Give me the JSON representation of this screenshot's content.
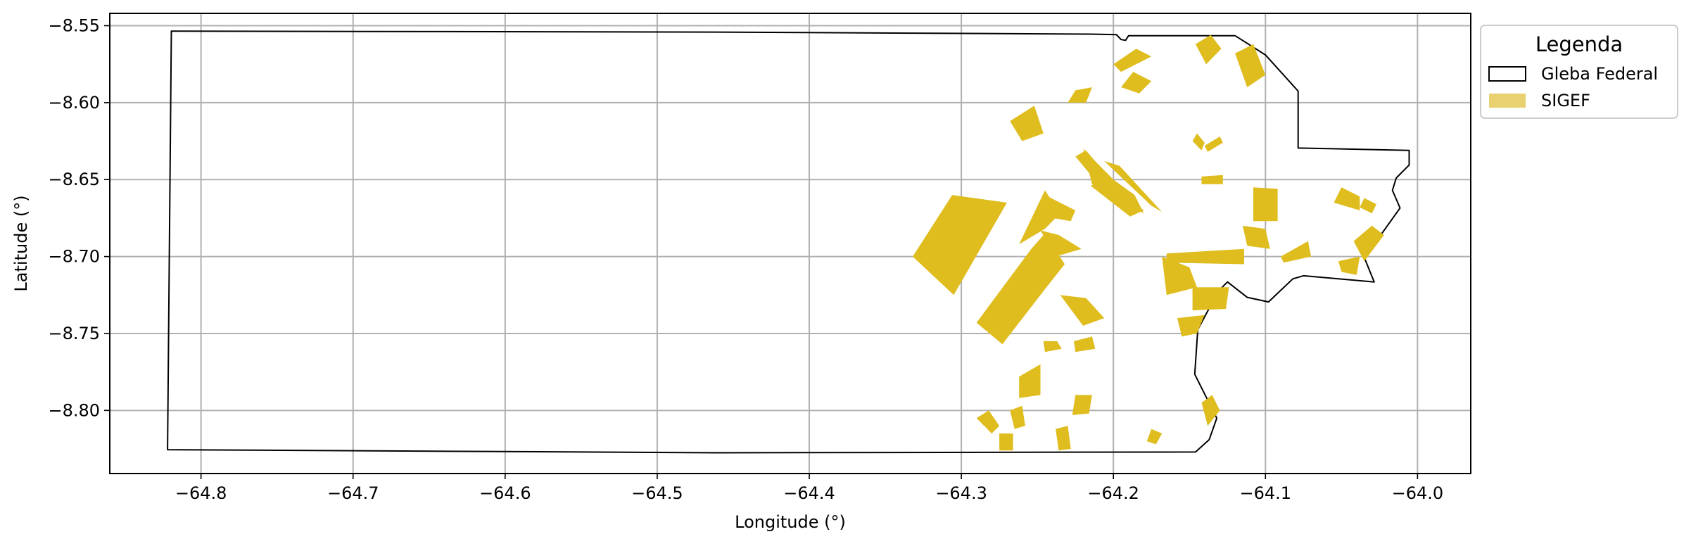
{
  "chart_data": {
    "type": "map",
    "xlabel": "Longitude (°)",
    "ylabel": "Latitude (°)",
    "xlim": [
      -64.86,
      -63.965
    ],
    "ylim": [
      -8.841,
      -8.542
    ],
    "grid": true,
    "xticks": [
      -64.8,
      -64.7,
      -64.6,
      -64.5,
      -64.4,
      -64.3,
      -64.2,
      -64.1,
      -64.0
    ],
    "yticks": [
      -8.55,
      -8.6,
      -8.65,
      -8.7,
      -8.75,
      -8.8
    ],
    "xtick_labels": [
      "−64.8",
      "−64.7",
      "−64.6",
      "−64.5",
      "−64.4",
      "−64.3",
      "−64.2",
      "−64.1",
      "−64.0"
    ],
    "ytick_labels": [
      "−8.55",
      "−8.60",
      "−8.65",
      "−8.70",
      "−8.75",
      "−8.80"
    ],
    "legend": {
      "title": "Legenda",
      "position": "outside-right-top",
      "entries": [
        {
          "label": "Gleba Federal",
          "style": "outline",
          "color": "#000000"
        },
        {
          "label": "SIGEF",
          "style": "fill",
          "color": "#dfbd1f"
        }
      ]
    },
    "layers": {
      "gleba_federal": {
        "name": "Gleba Federal",
        "edge_color": "#000000",
        "polygon": [
          [
            -64.8195,
            -8.5535
          ],
          [
            -64.45,
            -8.5542
          ],
          [
            -64.215,
            -8.5555
          ],
          [
            -64.198,
            -8.5558
          ],
          [
            -64.195,
            -8.559
          ],
          [
            -64.192,
            -8.5595
          ],
          [
            -64.19,
            -8.5565
          ],
          [
            -64.12,
            -8.5565
          ],
          [
            -64.1,
            -8.569
          ],
          [
            -64.0785,
            -8.5925
          ],
          [
            -64.0785,
            -8.6295
          ],
          [
            -64.0055,
            -8.631
          ],
          [
            -64.0055,
            -8.6405
          ],
          [
            -64.014,
            -8.649
          ],
          [
            -64.0165,
            -8.657
          ],
          [
            -64.013,
            -8.665
          ],
          [
            -64.0115,
            -8.6685
          ],
          [
            -64.0245,
            -8.6865
          ],
          [
            -64.0375,
            -8.6945
          ],
          [
            -64.0285,
            -8.7165
          ],
          [
            -64.075,
            -8.7125
          ],
          [
            -64.082,
            -8.7145
          ],
          [
            -64.098,
            -8.7295
          ],
          [
            -64.112,
            -8.7265
          ],
          [
            -64.125,
            -8.7165
          ],
          [
            -64.131,
            -8.7225
          ],
          [
            -64.1445,
            -8.7475
          ],
          [
            -64.1465,
            -8.7765
          ],
          [
            -64.132,
            -8.805
          ],
          [
            -64.137,
            -8.819
          ],
          [
            -64.146,
            -8.827
          ],
          [
            -64.46,
            -8.8275
          ],
          [
            -64.822,
            -8.8255
          ],
          [
            -64.8195,
            -8.5535
          ]
        ]
      },
      "sigef": {
        "name": "SIGEF",
        "fill_color": "#dfbd1f",
        "parcels": [
          [
            [
              -64.332,
              -8.7
            ],
            [
              -64.306,
              -8.66
            ],
            [
              -64.27,
              -8.665
            ],
            [
              -64.305,
              -8.725
            ]
          ],
          [
            [
              -64.29,
              -8.743
            ],
            [
              -64.254,
              -8.695
            ],
            [
              -64.245,
              -8.685
            ],
            [
              -64.232,
              -8.705
            ],
            [
              -64.244,
              -8.72
            ],
            [
              -64.273,
              -8.757
            ]
          ],
          [
            [
              -64.262,
              -8.692
            ],
            [
              -64.245,
              -8.657
            ],
            [
              -64.235,
              -8.672
            ],
            [
              -64.245,
              -8.682
            ]
          ],
          [
            [
              -64.248,
              -8.683
            ],
            [
              -64.236,
              -8.686
            ],
            [
              -64.221,
              -8.695
            ],
            [
              -64.238,
              -8.7
            ]
          ],
          [
            [
              -64.24,
              -8.675
            ],
            [
              -64.245,
              -8.66
            ],
            [
              -64.225,
              -8.67
            ],
            [
              -64.228,
              -8.677
            ]
          ],
          [
            [
              -64.18,
              -8.672
            ],
            [
              -64.214,
              -8.653
            ],
            [
              -64.22,
              -8.63
            ],
            [
              -64.2,
              -8.65
            ],
            [
              -64.186,
              -8.66
            ]
          ],
          [
            [
              -64.206,
              -8.638
            ],
            [
              -64.175,
              -8.667
            ],
            [
              -64.168,
              -8.671
            ],
            [
              -64.196,
              -8.641
            ]
          ],
          [
            [
              -64.225,
              -8.635
            ],
            [
              -64.204,
              -8.66
            ],
            [
              -64.196,
              -8.657
            ],
            [
              -64.218,
              -8.631
            ]
          ],
          [
            [
              -64.215,
              -8.654
            ],
            [
              -64.189,
              -8.674
            ],
            [
              -64.18,
              -8.67
            ],
            [
              -64.205,
              -8.65
            ]
          ],
          [
            [
              -64.252,
              -8.602
            ],
            [
              -64.268,
              -8.612
            ],
            [
              -64.26,
              -8.625
            ],
            [
              -64.246,
              -8.62
            ]
          ],
          [
            [
              -64.225,
              -8.592
            ],
            [
              -64.214,
              -8.59
            ],
            [
              -64.218,
              -8.6
            ],
            [
              -64.23,
              -8.6
            ]
          ],
          [
            [
              -64.2,
              -8.575
            ],
            [
              -64.185,
              -8.565
            ],
            [
              -64.175,
              -8.57
            ],
            [
              -64.195,
              -8.58
            ]
          ],
          [
            [
              -64.195,
              -8.59
            ],
            [
              -64.183,
              -8.594
            ],
            [
              -64.175,
              -8.586
            ],
            [
              -64.187,
              -8.58
            ]
          ],
          [
            [
              -64.146,
              -8.562
            ],
            [
              -64.136,
              -8.556
            ],
            [
              -64.129,
              -8.565
            ],
            [
              -64.139,
              -8.575
            ]
          ],
          [
            [
              -64.12,
              -8.568
            ],
            [
              -64.108,
              -8.562
            ],
            [
              -64.1,
              -8.582
            ],
            [
              -64.112,
              -8.59
            ]
          ],
          [
            [
              -64.148,
              -8.625
            ],
            [
              -64.142,
              -8.631
            ],
            [
              -64.14,
              -8.626
            ],
            [
              -64.145,
              -8.62
            ]
          ],
          [
            [
              -64.14,
              -8.628
            ],
            [
              -64.13,
              -8.622
            ],
            [
              -64.128,
              -8.626
            ],
            [
              -64.138,
              -8.632
            ]
          ],
          [
            [
              -64.142,
              -8.648
            ],
            [
              -64.128,
              -8.647
            ],
            [
              -64.128,
              -8.653
            ],
            [
              -64.142,
              -8.653
            ]
          ],
          [
            [
              -64.108,
              -8.655
            ],
            [
              -64.092,
              -8.656
            ],
            [
              -64.092,
              -8.677
            ],
            [
              -64.108,
              -8.677
            ]
          ],
          [
            [
              -64.05,
              -8.655
            ],
            [
              -64.038,
              -8.661
            ],
            [
              -64.038,
              -8.67
            ],
            [
              -64.055,
              -8.665
            ]
          ],
          [
            [
              -64.035,
              -8.662
            ],
            [
              -64.027,
              -8.666
            ],
            [
              -64.03,
              -8.672
            ],
            [
              -64.038,
              -8.668
            ]
          ],
          [
            [
              -64.115,
              -8.68
            ],
            [
              -64.1,
              -8.682
            ],
            [
              -64.097,
              -8.695
            ],
            [
              -64.112,
              -8.693
            ]
          ],
          [
            [
              -64.165,
              -8.698
            ],
            [
              -64.114,
              -8.695
            ],
            [
              -64.114,
              -8.705
            ],
            [
              -64.165,
              -8.704
            ]
          ],
          [
            [
              -64.09,
              -8.7
            ],
            [
              -64.072,
              -8.69
            ],
            [
              -64.07,
              -8.7
            ],
            [
              -64.088,
              -8.704
            ]
          ],
          [
            [
              -64.042,
              -8.69
            ],
            [
              -64.03,
              -8.68
            ],
            [
              -64.022,
              -8.686
            ],
            [
              -64.035,
              -8.703
            ]
          ],
          [
            [
              -64.052,
              -8.703
            ],
            [
              -64.038,
              -8.7
            ],
            [
              -64.04,
              -8.712
            ],
            [
              -64.05,
              -8.71
            ]
          ],
          [
            [
              -64.168,
              -8.7
            ],
            [
              -64.15,
              -8.707
            ],
            [
              -64.145,
              -8.72
            ],
            [
              -64.165,
              -8.725
            ]
          ],
          [
            [
              -64.148,
              -8.72
            ],
            [
              -64.124,
              -8.72
            ],
            [
              -64.126,
              -8.734
            ],
            [
              -64.148,
              -8.735
            ]
          ],
          [
            [
              -64.158,
              -8.74
            ],
            [
              -64.14,
              -8.738
            ],
            [
              -64.145,
              -8.75
            ],
            [
              -64.155,
              -8.752
            ]
          ],
          [
            [
              -64.218,
              -8.727
            ],
            [
              -64.235,
              -8.725
            ],
            [
              -64.22,
              -8.745
            ],
            [
              -64.206,
              -8.74
            ]
          ],
          [
            [
              -64.226,
              -8.755
            ],
            [
              -64.214,
              -8.752
            ],
            [
              -64.212,
              -8.76
            ],
            [
              -64.225,
              -8.762
            ]
          ],
          [
            [
              -64.246,
              -8.755
            ],
            [
              -64.237,
              -8.755
            ],
            [
              -64.234,
              -8.76
            ],
            [
              -64.245,
              -8.762
            ]
          ],
          [
            [
              -64.262,
              -8.778
            ],
            [
              -64.248,
              -8.77
            ],
            [
              -64.248,
              -8.79
            ],
            [
              -64.262,
              -8.792
            ]
          ],
          [
            [
              -64.268,
              -8.8
            ],
            [
              -64.26,
              -8.797
            ],
            [
              -64.258,
              -8.81
            ],
            [
              -64.265,
              -8.812
            ]
          ],
          [
            [
              -64.29,
              -8.805
            ],
            [
              -64.282,
              -8.8
            ],
            [
              -64.275,
              -8.81
            ],
            [
              -64.28,
              -8.815
            ]
          ],
          [
            [
              -64.275,
              -8.815
            ],
            [
              -64.266,
              -8.815
            ],
            [
              -64.266,
              -8.826
            ],
            [
              -64.275,
              -8.826
            ]
          ],
          [
            [
              -64.238,
              -8.812
            ],
            [
              -64.23,
              -8.81
            ],
            [
              -64.228,
              -8.825
            ],
            [
              -64.236,
              -8.826
            ]
          ],
          [
            [
              -64.225,
              -8.79
            ],
            [
              -64.214,
              -8.79
            ],
            [
              -64.216,
              -8.802
            ],
            [
              -64.227,
              -8.803
            ]
          ],
          [
            [
              -64.175,
              -8.812
            ],
            [
              -64.168,
              -8.815
            ],
            [
              -64.172,
              -8.822
            ],
            [
              -64.178,
              -8.82
            ]
          ],
          [
            [
              -64.142,
              -8.795
            ],
            [
              -64.135,
              -8.79
            ],
            [
              -64.13,
              -8.8
            ],
            [
              -64.138,
              -8.81
            ]
          ]
        ]
      }
    }
  }
}
